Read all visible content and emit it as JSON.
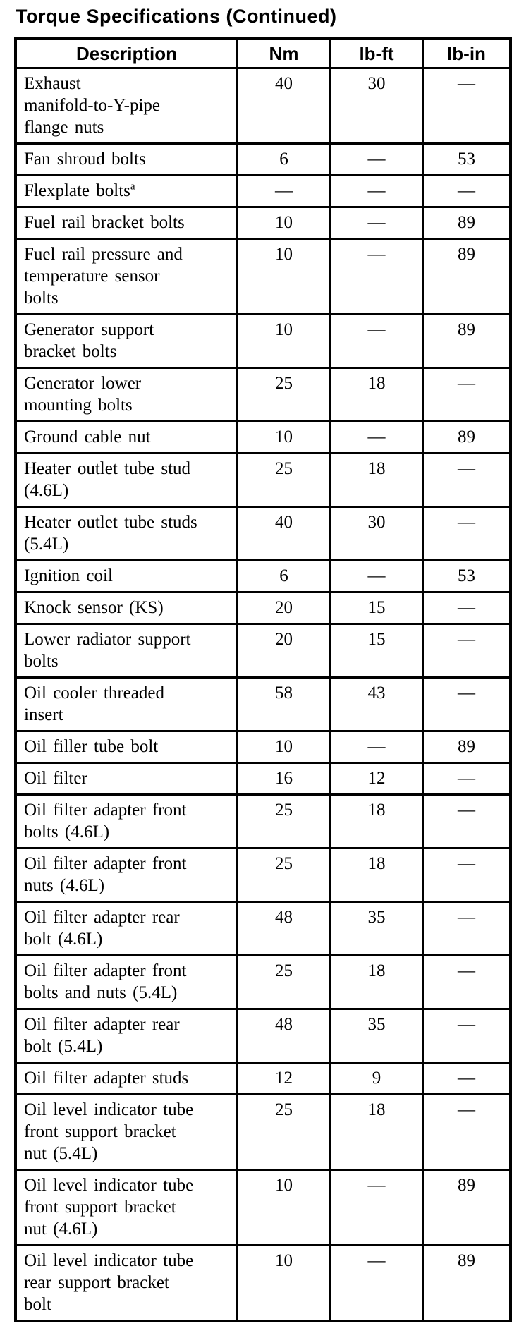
{
  "title": "Torque Specifications (Continued)",
  "colors": {
    "text": "#000000",
    "background": "#ffffff",
    "border": "#000000"
  },
  "table": {
    "columns": [
      "Description",
      "Nm",
      "lb-ft",
      "lb-in"
    ],
    "rows": [
      {
        "description": "Exhaust\nmanifold-to-Y-pipe\nflange nuts",
        "nm": "40",
        "lb_ft": "30",
        "lb_in": "—"
      },
      {
        "description": "Fan shroud bolts",
        "nm": "6",
        "lb_ft": "—",
        "lb_in": "53"
      },
      {
        "description": "Flexplate bolts",
        "footnote": "a",
        "nm": "—",
        "lb_ft": "—",
        "lb_in": "—"
      },
      {
        "description": "Fuel rail bracket bolts",
        "nm": "10",
        "lb_ft": "—",
        "lb_in": "89"
      },
      {
        "description": "Fuel rail pressure and\ntemperature sensor\nbolts",
        "nm": "10",
        "lb_ft": "—",
        "lb_in": "89"
      },
      {
        "description": "Generator support\nbracket bolts",
        "nm": "10",
        "lb_ft": "—",
        "lb_in": "89"
      },
      {
        "description": "Generator lower\nmounting bolts",
        "nm": "25",
        "lb_ft": "18",
        "lb_in": "—"
      },
      {
        "description": "Ground cable nut",
        "nm": "10",
        "lb_ft": "—",
        "lb_in": "89"
      },
      {
        "description": "Heater outlet tube stud\n(4.6L)",
        "nm": "25",
        "lb_ft": "18",
        "lb_in": "—"
      },
      {
        "description": "Heater outlet tube studs\n(5.4L)",
        "nm": "40",
        "lb_ft": "30",
        "lb_in": "—"
      },
      {
        "description": "Ignition coil",
        "nm": "6",
        "lb_ft": "—",
        "lb_in": "53"
      },
      {
        "description": "Knock sensor (KS)",
        "nm": "20",
        "lb_ft": "15",
        "lb_in": "—"
      },
      {
        "description": "Lower radiator support\nbolts",
        "nm": "20",
        "lb_ft": "15",
        "lb_in": "—"
      },
      {
        "description": "Oil cooler threaded\ninsert",
        "nm": "58",
        "lb_ft": "43",
        "lb_in": "—"
      },
      {
        "description": "Oil filler tube bolt",
        "nm": "10",
        "lb_ft": "—",
        "lb_in": "89"
      },
      {
        "description": "Oil filter",
        "nm": "16",
        "lb_ft": "12",
        "lb_in": "—"
      },
      {
        "description": "Oil filter adapter front\nbolts (4.6L)",
        "nm": "25",
        "lb_ft": "18",
        "lb_in": "—"
      },
      {
        "description": "Oil filter adapter front\nnuts (4.6L)",
        "nm": "25",
        "lb_ft": "18",
        "lb_in": "—"
      },
      {
        "description": "Oil filter adapter rear\nbolt (4.6L)",
        "nm": "48",
        "lb_ft": "35",
        "lb_in": "—"
      },
      {
        "description": "Oil filter adapter front\nbolts and nuts (5.4L)",
        "nm": "25",
        "lb_ft": "18",
        "lb_in": "—"
      },
      {
        "description": "Oil filter adapter rear\nbolt (5.4L)",
        "nm": "48",
        "lb_ft": "35",
        "lb_in": "—"
      },
      {
        "description": "Oil filter adapter studs",
        "nm": "12",
        "lb_ft": "9",
        "lb_in": "—"
      },
      {
        "description": "Oil level indicator tube\nfront support bracket\nnut (5.4L)",
        "nm": "25",
        "lb_ft": "18",
        "lb_in": "—"
      },
      {
        "description": "Oil level indicator tube\nfront support bracket\nnut (4.6L)",
        "nm": "10",
        "lb_ft": "—",
        "lb_in": "89"
      },
      {
        "description": "Oil level indicator tube\nrear support bracket\nbolt",
        "nm": "10",
        "lb_ft": "—",
        "lb_in": "89"
      }
    ]
  }
}
